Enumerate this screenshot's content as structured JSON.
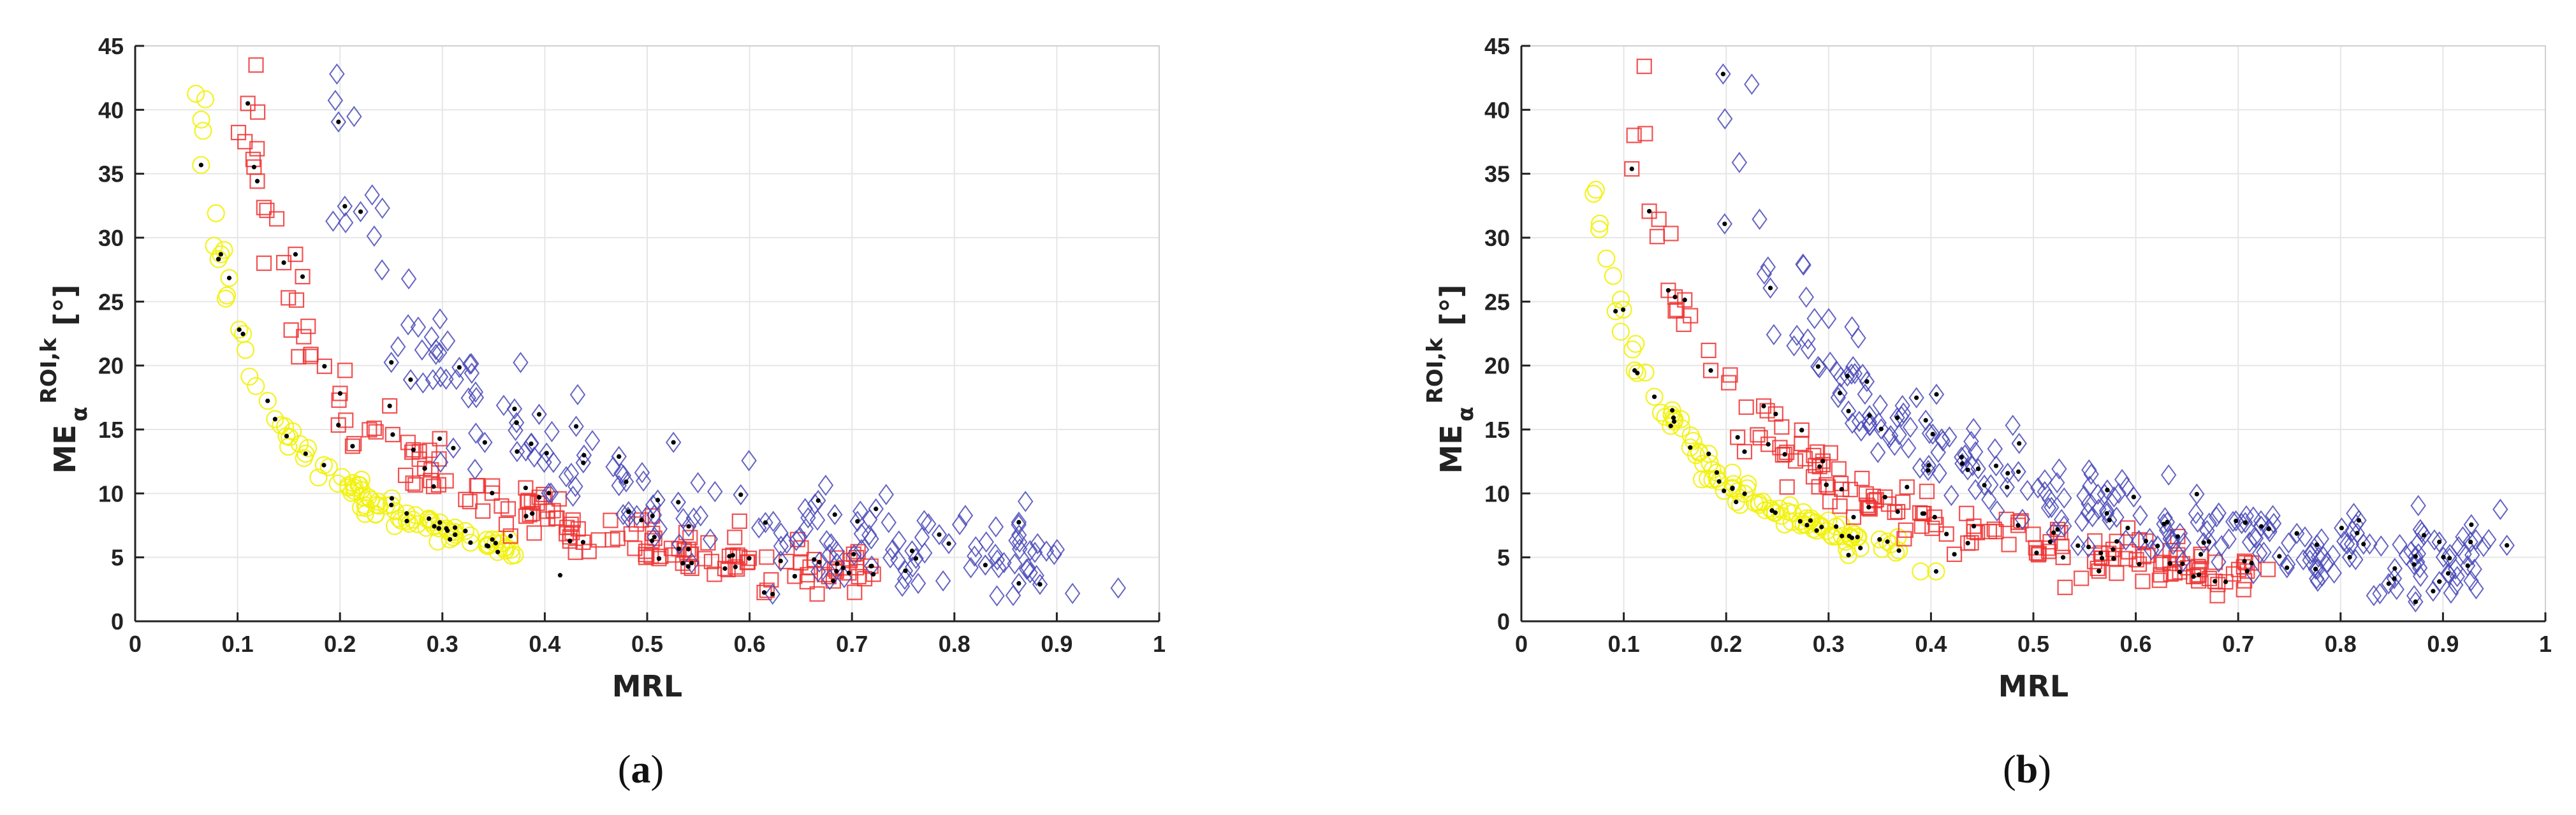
{
  "figure": {
    "panels": [
      {
        "label_open": "(",
        "label_letter": "a",
        "label_close": ")"
      },
      {
        "label_open": "(",
        "label_letter": "b",
        "label_close": ")"
      }
    ]
  },
  "colors": {
    "yellow": "#f2f20a",
    "red": "#ee3333",
    "blue": "#4a4ab8",
    "black": "#000000",
    "grid": "#e6e6e6",
    "axis": "#222222"
  },
  "chart_data": [
    {
      "type": "scatter",
      "title": "",
      "xlabel": "MRL",
      "ylabel": {
        "main": "ME",
        "subscript": "α",
        "superscript": "ROI,k",
        "unit": "[°]"
      },
      "xlim": [
        0,
        1
      ],
      "ylim": [
        0,
        45
      ],
      "x_ticks": [
        "0",
        "0.1",
        "0.2",
        "0.3",
        "0.4",
        "0.5",
        "0.6",
        "0.7",
        "0.8",
        "0.9",
        "1"
      ],
      "y_ticks": [
        "0",
        "5",
        "10",
        "15",
        "20",
        "25",
        "30",
        "35",
        "40",
        "45"
      ],
      "grid": true,
      "series": [
        {
          "name": "yellow circles",
          "marker": "circle",
          "color": "#f2f20a",
          "trend": {
            "A": 2.25,
            "x0": 0.005,
            "offset": -0.5
          },
          "range": [
            0.052,
            0.375
          ],
          "n": 110,
          "spread": 0.4,
          "scatter_x": 0.004,
          "extra": []
        },
        {
          "name": "red squares",
          "marker": "square",
          "color": "#ee3333",
          "trend": {
            "A": 3.2,
            "x0": 0.03,
            "offset": -0.6
          },
          "range": [
            0.103,
            0.72
          ],
          "n": 170,
          "spread": 1.0,
          "scatter_x": 0.006,
          "extra": [
            [
              0.118,
              43.5
            ],
            [
              0.11,
              40.5
            ]
          ]
        },
        {
          "name": "blue diamonds",
          "marker": "diamond",
          "color": "#4a4ab8",
          "trend": {
            "A": 5.0,
            "x0": 0.07,
            "offset": -1.4
          },
          "range": [
            0.18,
            0.91
          ],
          "n": 190,
          "spread": 2.0,
          "scatter_x": 0.012,
          "extra": [
            [
              0.197,
              42.8
            ],
            [
              0.96,
              2.6
            ]
          ]
        },
        {
          "name": "black dots",
          "marker": "dot",
          "color": "#000000",
          "points": "subsample of all series",
          "n": 150,
          "extra": [
            [
              0.415,
              3.6
            ]
          ]
        }
      ]
    },
    {
      "type": "scatter",
      "title": "",
      "xlabel": "MRL",
      "ylabel": {
        "main": "ME",
        "subscript": "α",
        "superscript": "ROI,k",
        "unit": "[°]"
      },
      "xlim": [
        0,
        1
      ],
      "ylim": [
        0,
        45
      ],
      "x_ticks": [
        "0",
        "0.1",
        "0.2",
        "0.3",
        "0.4",
        "0.5",
        "0.6",
        "0.7",
        "0.8",
        "0.9",
        "1"
      ],
      "y_ticks": [
        "0",
        "5",
        "10",
        "15",
        "20",
        "25",
        "30",
        "35",
        "40",
        "45"
      ],
      "grid": true,
      "series": [
        {
          "name": "yellow circles",
          "marker": "circle",
          "color": "#f2f20a",
          "trend": {
            "A": 2.25,
            "x0": 0.005,
            "offset": -0.5
          },
          "range": [
            0.053,
            0.37
          ],
          "n": 110,
          "spread": 0.4,
          "scatter_x": 0.004,
          "extra": [
            [
              0.405,
              3.9
            ],
            [
              0.39,
              3.9
            ]
          ]
        },
        {
          "name": "red squares",
          "marker": "square",
          "color": "#ee3333",
          "trend": {
            "A": 3.2,
            "x0": 0.03,
            "offset": -0.6
          },
          "range": [
            0.103,
            0.725
          ],
          "n": 170,
          "spread": 1.0,
          "scatter_x": 0.006,
          "extra": [
            [
              0.12,
              43.4
            ],
            [
              0.11,
              38.0
            ]
          ]
        },
        {
          "name": "blue diamonds",
          "marker": "diamond",
          "color": "#4a4ab8",
          "trend": {
            "A": 5.0,
            "x0": 0.07,
            "offset": -1.4
          },
          "range": [
            0.19,
            0.95
          ],
          "n": 260,
          "spread": 1.6,
          "scatter_x": 0.012,
          "extra": [
            [
              0.197,
              42.8
            ],
            [
              0.225,
              42.0
            ]
          ]
        },
        {
          "name": "black dots",
          "marker": "dot",
          "color": "#000000",
          "points": "subsample of all series",
          "n": 190,
          "extra": []
        }
      ]
    }
  ]
}
